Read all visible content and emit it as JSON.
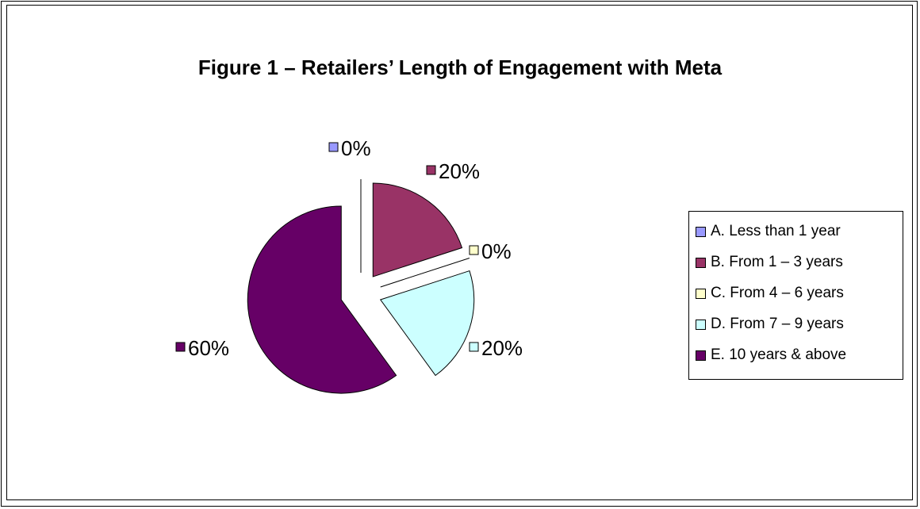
{
  "chart_data": {
    "type": "pie",
    "title": "Figure 1 – Retailers’ Length of Engagement with Meta",
    "categories": [
      "A. Less than 1 year",
      "B. From 1 – 3 years",
      "C. From 4 – 6 years",
      "D. From 7 – 9 years",
      "E. 10 years & above"
    ],
    "values": [
      0,
      20,
      0,
      20,
      60
    ],
    "data_labels": [
      "0%",
      "20%",
      "0%",
      "20%",
      "60%"
    ],
    "colors": [
      "#9999FF",
      "#993366",
      "#FFFFCC",
      "#CCFFFF",
      "#660066"
    ],
    "exploded": true,
    "legend_position": "right"
  }
}
